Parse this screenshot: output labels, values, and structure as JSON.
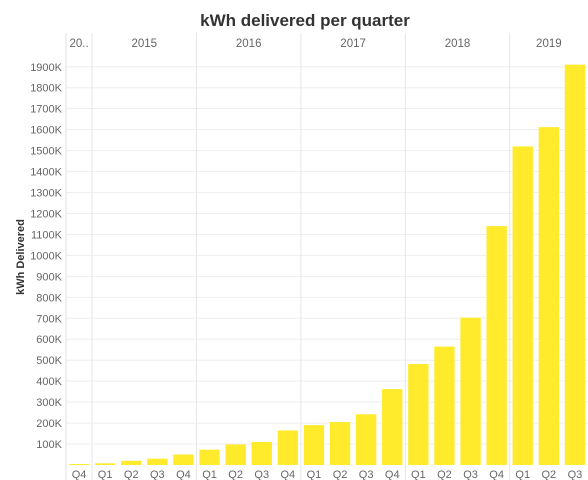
{
  "chart_data": {
    "type": "bar",
    "title": "kWh delivered per quarter",
    "ylabel": "kWh Delivered",
    "xlabel": "",
    "ylim": [
      0,
      1980000
    ],
    "yticks": [
      100000,
      200000,
      300000,
      400000,
      500000,
      600000,
      700000,
      800000,
      900000,
      1000000,
      1100000,
      1200000,
      1300000,
      1400000,
      1500000,
      1600000,
      1700000,
      1800000,
      1900000
    ],
    "ytick_labels": [
      "100K",
      "200K",
      "300K",
      "400K",
      "500K",
      "600K",
      "700K",
      "800K",
      "900K",
      "1000K",
      "1100K",
      "1200K",
      "1300K",
      "1400K",
      "1500K",
      "1600K",
      "1700K",
      "1800K",
      "1900K"
    ],
    "years": [
      {
        "label": "20..",
        "quarters": 1
      },
      {
        "label": "2015",
        "quarters": 4
      },
      {
        "label": "2016",
        "quarters": 4
      },
      {
        "label": "2017",
        "quarters": 4
      },
      {
        "label": "2018",
        "quarters": 4
      },
      {
        "label": "2019",
        "quarters": 3
      }
    ],
    "categories": [
      "Q4",
      "Q1",
      "Q2",
      "Q3",
      "Q4",
      "Q1",
      "Q2",
      "Q3",
      "Q4",
      "Q1",
      "Q2",
      "Q3",
      "Q4",
      "Q1",
      "Q2",
      "Q3",
      "Q4",
      "Q1",
      "Q2",
      "Q3"
    ],
    "values": [
      5000,
      8000,
      20000,
      30000,
      50000,
      73000,
      98000,
      110000,
      165000,
      190000,
      205000,
      242000,
      362000,
      482000,
      565000,
      703000,
      1140000,
      1520000,
      1612000,
      1910000
    ],
    "bar_color": "#ffea2b",
    "grid": true,
    "legend": "none"
  }
}
